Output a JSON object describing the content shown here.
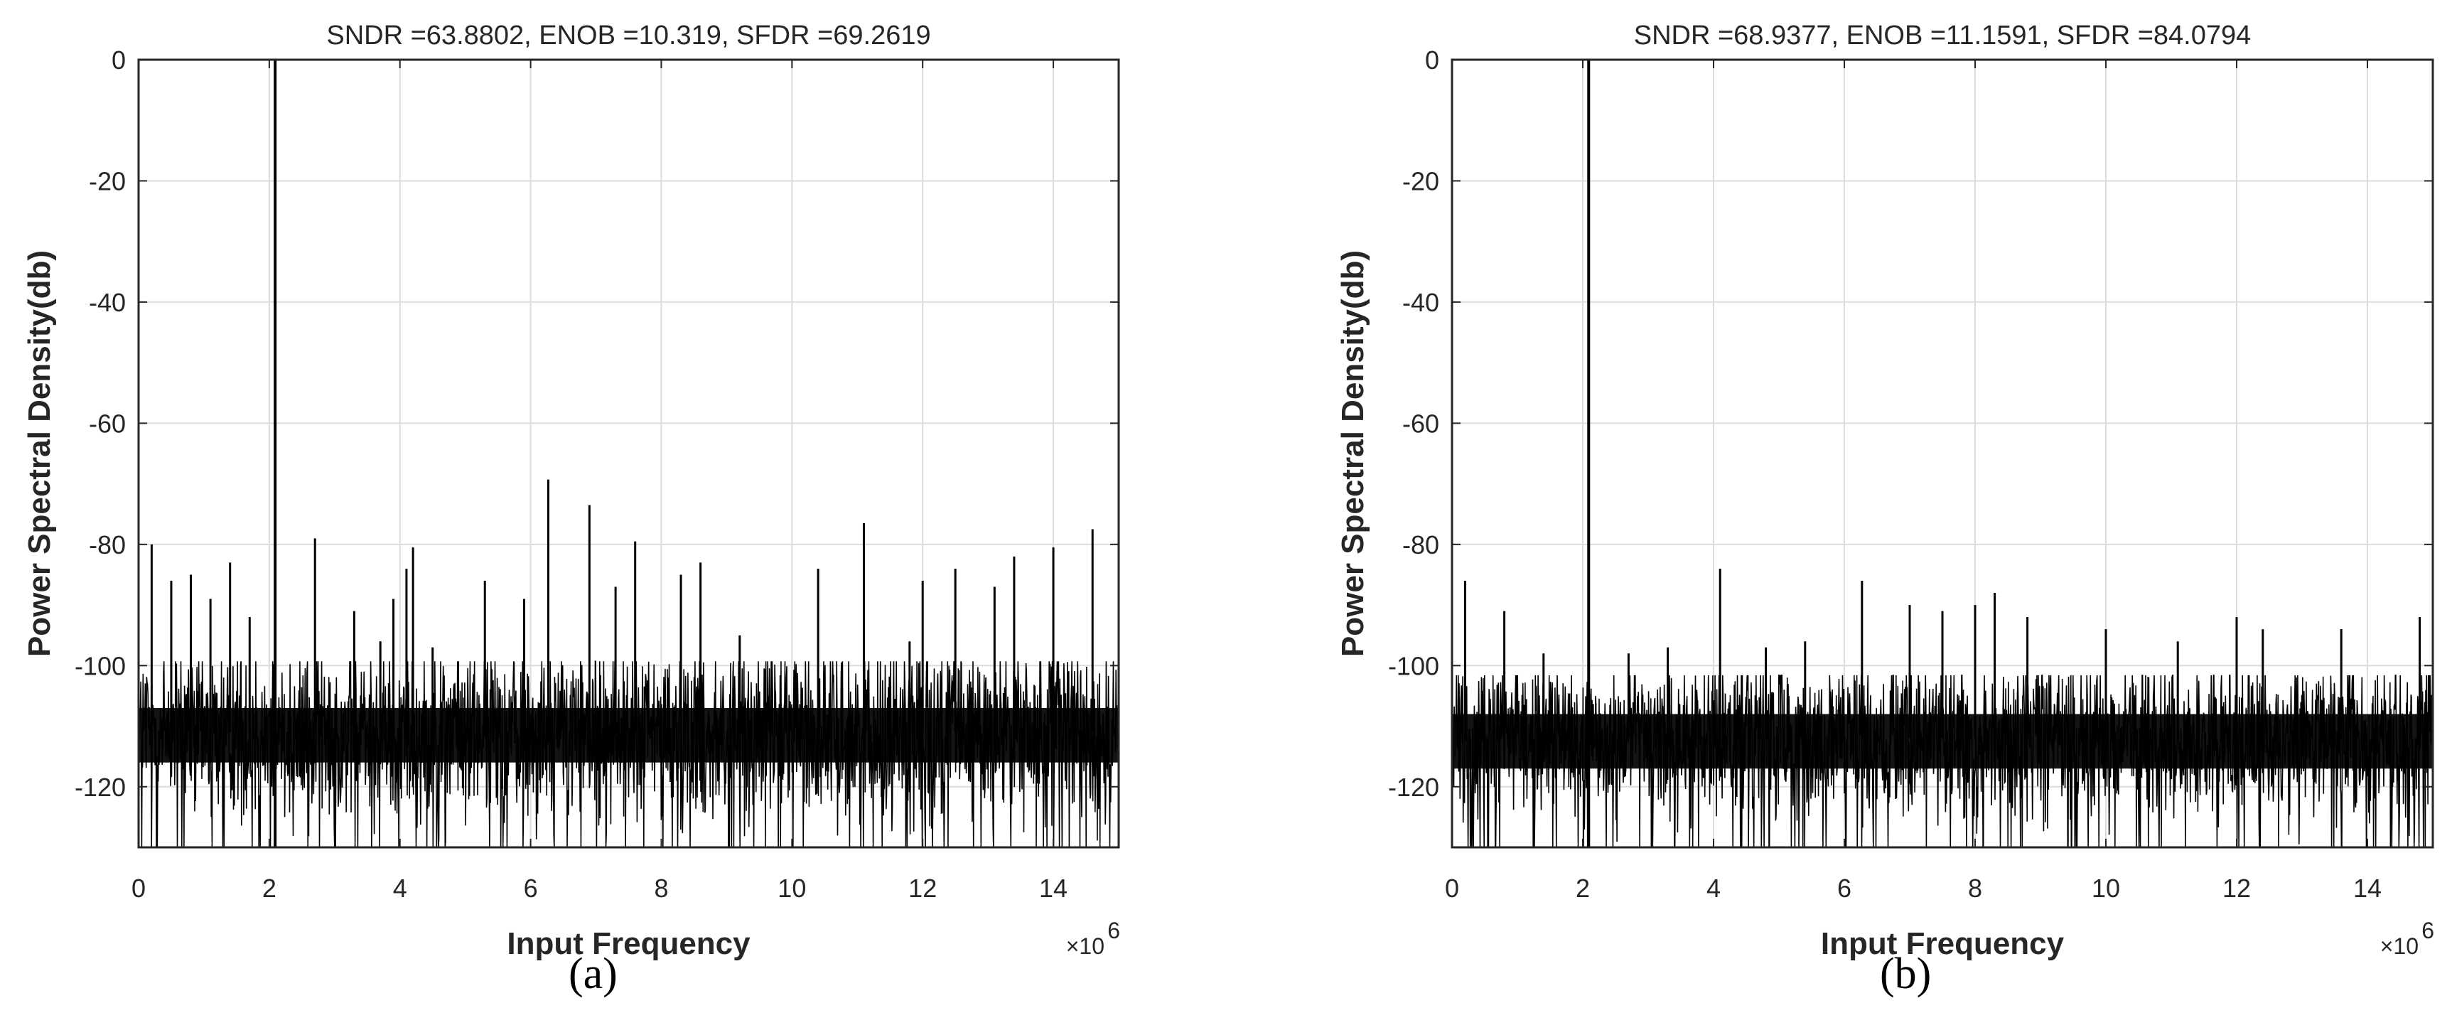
{
  "chart_data": [
    {
      "type": "line",
      "panel": "(a)",
      "title": "SNDR =63.8802, ENOB =10.319, SFDR =69.2619",
      "xlabel": "Input Frequency",
      "x_exponent": "×10^6",
      "x_exponent_base": "×10",
      "x_exponent_power": "6",
      "ylabel": "Power Spectral Density(db)",
      "xlim": [
        0,
        15
      ],
      "ylim": [
        -130,
        0
      ],
      "xticks": [
        "0",
        "2",
        "4",
        "6",
        "8",
        "10",
        "12",
        "14"
      ],
      "yticks": [
        "0",
        "-20",
        "-40",
        "-60",
        "-80",
        "-100",
        "-120"
      ],
      "grid": true,
      "noise_floor_db": -111,
      "noise_spread_db": 9,
      "fundamental": {
        "x": 2.09,
        "y": 0
      },
      "spurs": [
        {
          "x": 0.2,
          "y": -80
        },
        {
          "x": 0.5,
          "y": -86
        },
        {
          "x": 0.8,
          "y": -85
        },
        {
          "x": 1.1,
          "y": -89
        },
        {
          "x": 1.4,
          "y": -83
        },
        {
          "x": 1.7,
          "y": -92
        },
        {
          "x": 2.7,
          "y": -79
        },
        {
          "x": 3.3,
          "y": -91
        },
        {
          "x": 3.7,
          "y": -96
        },
        {
          "x": 3.9,
          "y": -89
        },
        {
          "x": 4.1,
          "y": -84
        },
        {
          "x": 4.2,
          "y": -80.5
        },
        {
          "x": 4.5,
          "y": -97
        },
        {
          "x": 5.3,
          "y": -86
        },
        {
          "x": 5.9,
          "y": -89
        },
        {
          "x": 6.27,
          "y": -69.3
        },
        {
          "x": 6.9,
          "y": -73.5
        },
        {
          "x": 7.3,
          "y": -87
        },
        {
          "x": 7.6,
          "y": -79.5
        },
        {
          "x": 8.3,
          "y": -85
        },
        {
          "x": 8.6,
          "y": -83
        },
        {
          "x": 9.2,
          "y": -95
        },
        {
          "x": 10.4,
          "y": -84
        },
        {
          "x": 11.1,
          "y": -76.5
        },
        {
          "x": 11.8,
          "y": -96
        },
        {
          "x": 12.0,
          "y": -86
        },
        {
          "x": 12.5,
          "y": -84
        },
        {
          "x": 13.1,
          "y": -87
        },
        {
          "x": 13.4,
          "y": -82
        },
        {
          "x": 14.0,
          "y": -80.5
        },
        {
          "x": 14.6,
          "y": -77.5
        }
      ],
      "metrics": {
        "SNDR": 63.8802,
        "ENOB": 10.319,
        "SFDR": 69.2619
      }
    },
    {
      "type": "line",
      "panel": "(b)",
      "title": "SNDR =68.9377, ENOB =11.1591, SFDR =84.0794",
      "xlabel": "Input Frequency",
      "x_exponent": "×10^6",
      "x_exponent_base": "×10",
      "x_exponent_power": "6",
      "ylabel": "Power Spectral Density(db)",
      "xlim": [
        0,
        15
      ],
      "ylim": [
        -130,
        0
      ],
      "xticks": [
        "0",
        "2",
        "4",
        "6",
        "8",
        "10",
        "12",
        "14"
      ],
      "yticks": [
        "0",
        "-20",
        "-40",
        "-60",
        "-80",
        "-100",
        "-120"
      ],
      "grid": true,
      "noise_floor_db": -112,
      "noise_spread_db": 8,
      "fundamental": {
        "x": 2.09,
        "y": 0
      },
      "spurs": [
        {
          "x": 0.2,
          "y": -86
        },
        {
          "x": 0.8,
          "y": -91
        },
        {
          "x": 1.4,
          "y": -98
        },
        {
          "x": 2.7,
          "y": -98
        },
        {
          "x": 3.3,
          "y": -97
        },
        {
          "x": 4.1,
          "y": -84
        },
        {
          "x": 4.8,
          "y": -97
        },
        {
          "x": 5.4,
          "y": -96
        },
        {
          "x": 6.27,
          "y": -86
        },
        {
          "x": 7.0,
          "y": -90
        },
        {
          "x": 7.5,
          "y": -91
        },
        {
          "x": 8.0,
          "y": -90
        },
        {
          "x": 8.3,
          "y": -88
        },
        {
          "x": 8.8,
          "y": -92
        },
        {
          "x": 10.0,
          "y": -94
        },
        {
          "x": 11.1,
          "y": -96
        },
        {
          "x": 12.0,
          "y": -92
        },
        {
          "x": 12.4,
          "y": -94
        },
        {
          "x": 13.6,
          "y": -94
        },
        {
          "x": 14.8,
          "y": -92
        }
      ],
      "metrics": {
        "SNDR": 68.9377,
        "ENOB": 11.1591,
        "SFDR": 84.0794
      }
    }
  ],
  "captions": {
    "a": "(a)",
    "b": "(b)"
  },
  "colors": {
    "trace": "#000000",
    "grid": "#dcdcdc",
    "axis": "#262626",
    "background": "#ffffff"
  }
}
